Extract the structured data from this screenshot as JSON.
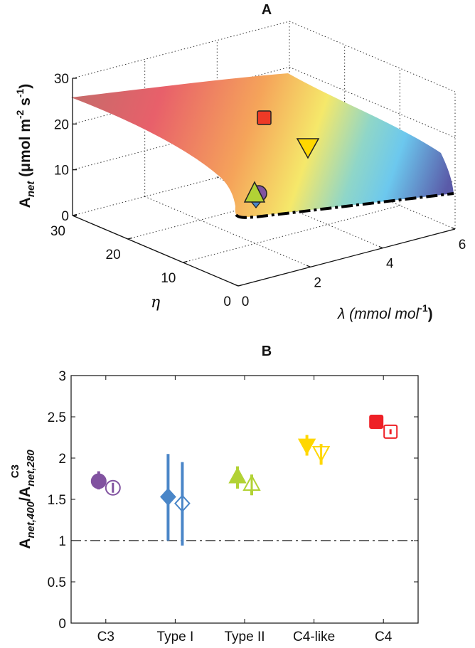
{
  "chart_data": [
    {
      "type": "surface",
      "title": "A",
      "zlabel": {
        "main": "A",
        "sub": "net",
        "rest": " (μmol m",
        "sup1": "-2",
        "mid": " s",
        "sup2": "-1",
        "end": ")"
      },
      "xlabel": {
        "main": "λ (mmol mol",
        "sup": "-1",
        "end": ")"
      },
      "ylabel": "η",
      "zticks": [
        "0",
        "10",
        "20",
        "30"
      ],
      "eta_ticks": [
        "0",
        "10",
        "20",
        "30"
      ],
      "lambda_ticks": [
        "0",
        "2",
        "4",
        "6"
      ],
      "zlim": [
        0,
        30
      ],
      "eta_lim": [
        0,
        30
      ],
      "lambda_lim": [
        0,
        6
      ],
      "grid": true,
      "colormap": [
        "#c96a6a",
        "#e8606a",
        "#f5a45a",
        "#f5e86a",
        "#8fd6c8",
        "#6cc8ee",
        "#5a5aa8"
      ],
      "markers": [
        {
          "group": "C4",
          "shape": "square",
          "color": "#ee2026"
        },
        {
          "group": "C4-like",
          "shape": "triangle-down",
          "color": "#ffd700"
        },
        {
          "group": "C3",
          "shape": "circle",
          "color": "#8152a0"
        },
        {
          "group": "Type II",
          "shape": "triangle-up",
          "color": "#b2d235"
        },
        {
          "group": "Type I",
          "shape": "diamond",
          "color": "#4a86c8"
        }
      ]
    },
    {
      "type": "scatter",
      "title": "B",
      "ylabel": {
        "a": "A",
        "a_sub": "net,400",
        "slash": "/A",
        "b_sub": "net,280",
        "sup": "C3"
      },
      "categories": [
        "C3",
        "Type I",
        "Type II",
        "C4-like",
        "C4"
      ],
      "ylim": [
        0,
        3
      ],
      "yticks": [
        "0",
        "0.5",
        "1",
        "1.5",
        "2",
        "2.5",
        "3"
      ],
      "reference_line": 1,
      "series": [
        {
          "name": "filled",
          "shapes": [
            "circle",
            "diamond",
            "triangle-up",
            "triangle-down",
            "square"
          ],
          "values": [
            1.72,
            1.53,
            1.78,
            2.15,
            2.44
          ],
          "err_low": [
            1.62,
            1.0,
            1.63,
            2.03,
            2.41
          ],
          "err_high": [
            1.84,
            2.05,
            1.9,
            2.28,
            2.47
          ]
        },
        {
          "name": "open",
          "shapes": [
            "circle",
            "diamond",
            "triangle-up",
            "triangle-down",
            "square"
          ],
          "values": [
            1.64,
            1.45,
            1.69,
            2.06,
            2.32
          ],
          "err_low": [
            1.58,
            0.94,
            1.55,
            1.92,
            2.29
          ],
          "err_high": [
            1.7,
            1.95,
            1.8,
            2.17,
            2.35
          ]
        }
      ],
      "colors": [
        "#8152a0",
        "#4a86c8",
        "#b2d235",
        "#ffd700",
        "#ee2026"
      ]
    }
  ]
}
